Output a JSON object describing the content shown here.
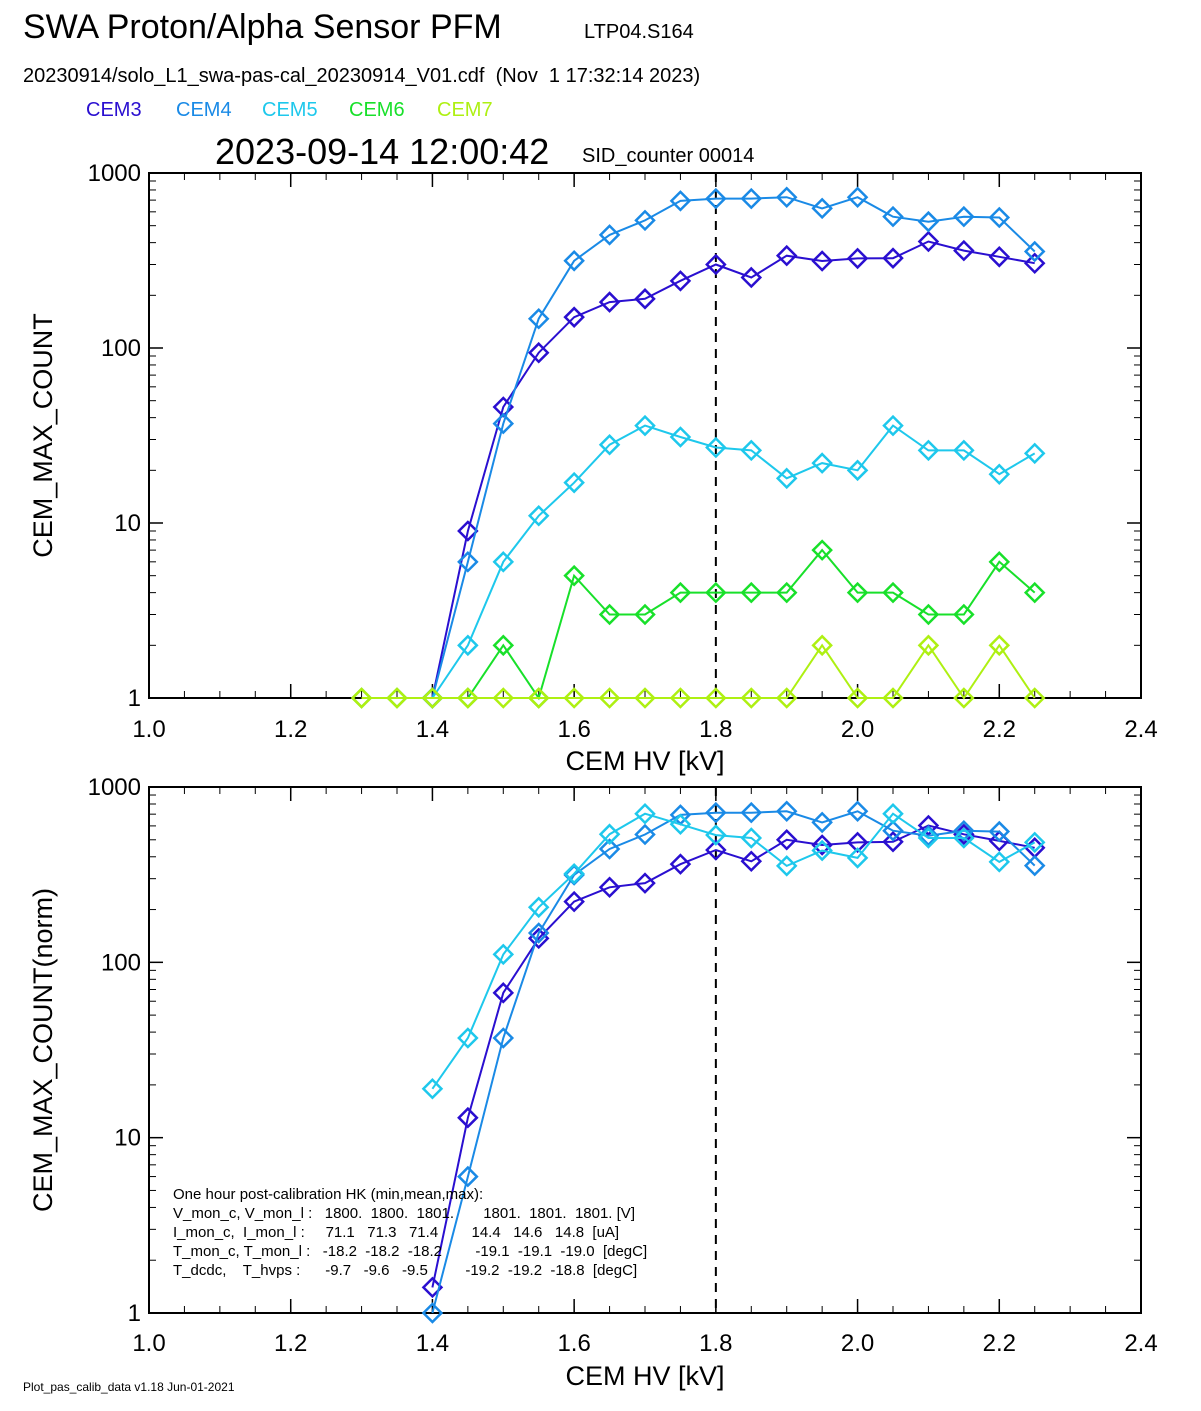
{
  "header": {
    "title": "SWA Proton/Alpha Sensor PFM",
    "title_id": "LTP04.S164",
    "file_line": "20230914/solo_L1_swa-pas-cal_20230914_V01.cdf  (Nov  1 17:32:14 2023)",
    "timestamp": "2023-09-14 12:00:42",
    "sid_label": "SID_counter 00014"
  },
  "legend": [
    {
      "name": "CEM3",
      "color": "#2a0fd0"
    },
    {
      "name": "CEM4",
      "color": "#1a8ae6"
    },
    {
      "name": "CEM5",
      "color": "#1ec8ec"
    },
    {
      "name": "CEM6",
      "color": "#18e02a"
    },
    {
      "name": "CEM7",
      "color": "#aef012"
    }
  ],
  "footer": "Plot_pas_calib_data v1.18 Jun-01-2021",
  "chart_data": [
    {
      "type": "line",
      "xlabel": "CEM HV [kV]",
      "ylabel": "CEM_MAX_COUNT",
      "xlim": [
        1.0,
        2.4
      ],
      "ylim": [
        1,
        1000
      ],
      "yscale": "log",
      "xticks": [
        "1.0",
        "1.2",
        "1.4",
        "1.6",
        "1.8",
        "2.0",
        "2.2",
        "2.4"
      ],
      "yticks": [
        "1",
        "10",
        "100",
        "1000"
      ],
      "vline_x": 1.8,
      "series": [
        {
          "name": "CEM3",
          "color": "#2a0fd0",
          "x": [
            1.4,
            1.45,
            1.5,
            1.55,
            1.6,
            1.65,
            1.7,
            1.75,
            1.8,
            1.85,
            1.9,
            1.95,
            2.0,
            2.05,
            2.1,
            2.15,
            2.2,
            2.25
          ],
          "y": [
            1,
            9,
            46,
            94,
            150,
            183,
            191,
            242,
            300,
            253,
            337,
            314,
            325,
            326,
            406,
            360,
            332,
            305
          ]
        },
        {
          "name": "CEM4",
          "color": "#1a8ae6",
          "x": [
            1.4,
            1.45,
            1.5,
            1.55,
            1.6,
            1.65,
            1.7,
            1.75,
            1.8,
            1.85,
            1.9,
            1.95,
            2.0,
            2.05,
            2.1,
            2.15,
            2.2,
            2.25
          ],
          "y": [
            1,
            6,
            37,
            147,
            315,
            443,
            536,
            693,
            714,
            714,
            727,
            628,
            727,
            563,
            527,
            563,
            557,
            356
          ]
        },
        {
          "name": "CEM5",
          "color": "#1ec8ec",
          "x": [
            1.4,
            1.45,
            1.5,
            1.55,
            1.6,
            1.65,
            1.7,
            1.75,
            1.8,
            1.85,
            1.9,
            1.95,
            2.0,
            2.05,
            2.1,
            2.15,
            2.2,
            2.25
          ],
          "y": [
            1,
            2,
            6,
            11,
            17,
            28,
            36,
            31,
            27,
            26,
            18,
            22,
            20,
            36,
            26,
            26,
            19,
            25
          ]
        },
        {
          "name": "CEM6",
          "color": "#18e02a",
          "x": [
            1.3,
            1.35,
            1.4,
            1.45,
            1.5,
            1.55,
            1.6,
            1.65,
            1.7,
            1.75,
            1.8,
            1.85,
            1.9,
            1.95,
            2.0,
            2.05,
            2.1,
            2.15,
            2.2,
            2.25
          ],
          "y": [
            1,
            1,
            1,
            1,
            2,
            1,
            5,
            3,
            3,
            4,
            4,
            4,
            4,
            7,
            4,
            4,
            3,
            3,
            6,
            4
          ]
        },
        {
          "name": "CEM7",
          "color": "#aef012",
          "x": [
            1.3,
            1.35,
            1.4,
            1.45,
            1.5,
            1.55,
            1.6,
            1.65,
            1.7,
            1.75,
            1.8,
            1.85,
            1.9,
            1.95,
            2.0,
            2.05,
            2.1,
            2.15,
            2.2,
            2.25
          ],
          "y": [
            1,
            1,
            1,
            1,
            1,
            1,
            1,
            1,
            1,
            1,
            1,
            1,
            1,
            2,
            1,
            1,
            2,
            1,
            2,
            1
          ]
        }
      ]
    },
    {
      "type": "line",
      "xlabel": "CEM HV [kV]",
      "ylabel": "CEM_MAX_COUNT(norm)",
      "xlim": [
        1.0,
        2.4
      ],
      "ylim": [
        1,
        1000
      ],
      "yscale": "log",
      "xticks": [
        "1.0",
        "1.2",
        "1.4",
        "1.6",
        "1.8",
        "2.0",
        "2.2",
        "2.4"
      ],
      "yticks": [
        "1",
        "10",
        "100",
        "1000"
      ],
      "vline_x": 1.8,
      "series": [
        {
          "name": "CEM3",
          "color": "#2a0fd0",
          "x": [
            1.4,
            1.45,
            1.5,
            1.55,
            1.6,
            1.65,
            1.7,
            1.75,
            1.8,
            1.85,
            1.9,
            1.95,
            2.0,
            2.05,
            2.1,
            2.15,
            2.2,
            2.25
          ],
          "y": [
            1.4,
            13,
            67,
            137,
            222,
            268,
            283,
            363,
            437,
            377,
            500,
            467,
            483,
            487,
            603,
            537,
            493,
            450
          ]
        },
        {
          "name": "CEM4",
          "color": "#1a8ae6",
          "x": [
            1.4,
            1.45,
            1.5,
            1.55,
            1.6,
            1.65,
            1.7,
            1.75,
            1.8,
            1.85,
            1.9,
            1.95,
            2.0,
            2.05,
            2.1,
            2.15,
            2.2,
            2.25
          ],
          "y": [
            1,
            6,
            37,
            147,
            315,
            443,
            536,
            693,
            714,
            714,
            727,
            628,
            727,
            563,
            527,
            563,
            557,
            356
          ]
        },
        {
          "name": "CEM5",
          "color": "#1ec8ec",
          "x": [
            1.4,
            1.45,
            1.5,
            1.55,
            1.6,
            1.65,
            1.7,
            1.75,
            1.8,
            1.85,
            1.9,
            1.95,
            2.0,
            2.05,
            2.1,
            2.15,
            2.2,
            2.25
          ],
          "y": [
            19,
            37,
            111,
            206,
            320,
            538,
            704,
            613,
            532,
            512,
            355,
            434,
            394,
            704,
            512,
            512,
            374,
            483
          ]
        }
      ],
      "annotation": {
        "lines": [
          "One hour post-calibration HK (min,mean,max):",
          "V_mon_c, V_mon_l :   1800.  1800.  1801.       1801.  1801.  1801. [V]",
          "I_mon_c,  I_mon_l :     71.1   71.3   71.4        14.4   14.6   14.8  [uA]",
          "T_mon_c, T_mon_l :   -18.2  -18.2  -18.2        -19.1  -19.1  -19.0  [degC]",
          "T_dcdc,    T_hvps :      -9.7   -9.6   -9.5         -19.2  -19.2  -18.8  [degC]"
        ]
      }
    }
  ]
}
